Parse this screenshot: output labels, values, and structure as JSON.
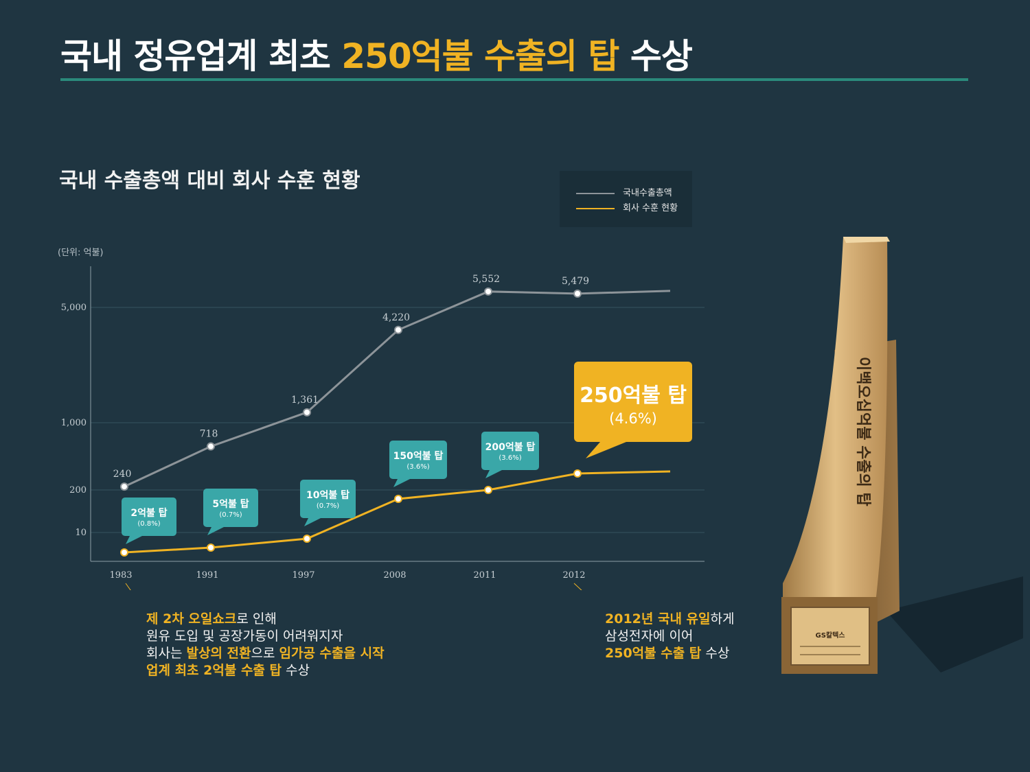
{
  "title": {
    "part1": "국내 정유업계 최초 ",
    "highlight": "250억불 수출의 탑",
    "part2": " 수상"
  },
  "colors": {
    "background": "#1f3541",
    "accent": "#f0b323",
    "teal": "#2b8a7b",
    "gray_line": "#8d9499",
    "bubble_teal": "#3aa7a8"
  },
  "chart_data": {
    "type": "line",
    "title": "국내 수출총액 대비 회사 수훈 현황",
    "unit_label": "(단위: 억불)",
    "x": [
      "1983",
      "1991",
      "1997",
      "2008",
      "2011",
      "2012"
    ],
    "y_tick_labels": [
      "5,000",
      "1,000",
      "200",
      "10"
    ],
    "grid": true,
    "legend_position": "top-right",
    "series": [
      {
        "name": "국내수출총액",
        "color": "#8d9499",
        "values": [
          240,
          718,
          1361,
          4220,
          5552,
          5479
        ],
        "labels": [
          "240",
          "718",
          "1,361",
          "4,220",
          "5,552",
          "5,479"
        ]
      },
      {
        "name": "회사 수훈 현황",
        "color": "#f0b323",
        "values": [
          2,
          5,
          10,
          150,
          200,
          250
        ],
        "callouts": [
          {
            "label": "2억불 탑",
            "share": "(0.8%)"
          },
          {
            "label": "5억불 탑",
            "share": "(0.7%)"
          },
          {
            "label": "10억불 탑",
            "share": "(0.7%)"
          },
          {
            "label": "150억불 탑",
            "share": "(3.6%)"
          },
          {
            "label": "200억불 탑",
            "share": "(3.6%)"
          },
          {
            "label": "250억불 탑",
            "share": "(4.6%)"
          }
        ]
      }
    ]
  },
  "notes": {
    "left": {
      "l1a": "제 2차 오일쇼크",
      "l1b": "로 인해",
      "l2": "원유 도입 및 공장가동이 어려워지자",
      "l3a": "회사는 ",
      "l3b": "발상의 전환",
      "l3c": "으로 ",
      "l3d": "임가공 수출을 시작",
      "l4a": "업계 최초 2억불 수출 탑",
      "l4b": " 수상"
    },
    "right": {
      "l1a": "2012년 국내 유일",
      "l1b": "하게",
      "l2": "삼성전자에 이어",
      "l3a": "250억불 수출 탑",
      "l3b": " 수상"
    }
  },
  "trophy": {
    "inscription": "이백오십억불 수출의 탑",
    "plaque_logo": "GS칼텍스"
  }
}
